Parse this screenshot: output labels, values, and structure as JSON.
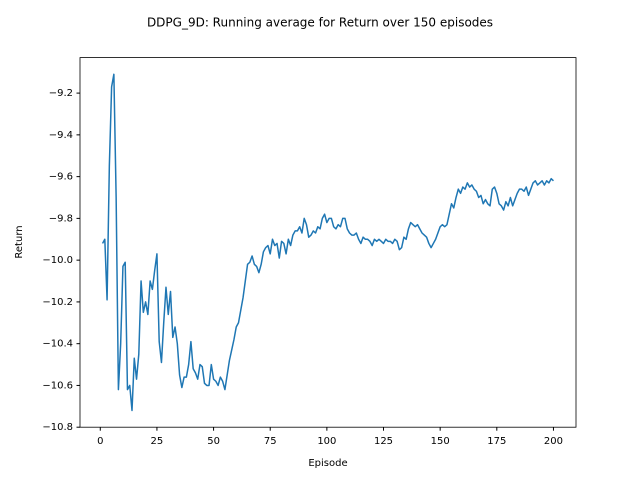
{
  "chart_data": {
    "type": "line",
    "title": "DDPG_9D: Running average for Return over 150 episodes",
    "xlabel": "Episode",
    "ylabel": "Return",
    "color": "#1f77b4",
    "grid": false,
    "xlim": [
      -8.95,
      209.95
    ],
    "ylim": [
      -10.8,
      -9.03
    ],
    "xticks": [
      0,
      25,
      50,
      75,
      100,
      125,
      150,
      175,
      200
    ],
    "yticks": [
      {
        "value": -10.8,
        "label": "−10.8"
      },
      {
        "value": -10.6,
        "label": "−10.6"
      },
      {
        "value": -10.4,
        "label": "−10.4"
      },
      {
        "value": -10.2,
        "label": "−10.2"
      },
      {
        "value": -10.0,
        "label": "−10.0"
      },
      {
        "value": -9.8,
        "label": "−9.8"
      },
      {
        "value": -9.6,
        "label": "−9.6"
      },
      {
        "value": -9.4,
        "label": "−9.4"
      },
      {
        "value": -9.2,
        "label": "−9.2"
      }
    ],
    "x": [
      1,
      2,
      3,
      4,
      5,
      6,
      7,
      8,
      9,
      10,
      11,
      12,
      13,
      14,
      15,
      16,
      17,
      18,
      19,
      20,
      21,
      22,
      23,
      24,
      25,
      26,
      27,
      28,
      29,
      30,
      31,
      32,
      33,
      34,
      35,
      36,
      37,
      38,
      39,
      40,
      41,
      42,
      43,
      44,
      45,
      46,
      47,
      48,
      49,
      50,
      51,
      52,
      53,
      54,
      55,
      56,
      57,
      58,
      59,
      60,
      61,
      62,
      63,
      64,
      65,
      66,
      67,
      68,
      69,
      70,
      71,
      72,
      73,
      74,
      75,
      76,
      77,
      78,
      79,
      80,
      81,
      82,
      83,
      84,
      85,
      86,
      87,
      88,
      89,
      90,
      91,
      92,
      93,
      94,
      95,
      96,
      97,
      98,
      99,
      100,
      101,
      102,
      103,
      104,
      105,
      106,
      107,
      108,
      109,
      110,
      111,
      112,
      113,
      114,
      115,
      116,
      117,
      118,
      119,
      120,
      121,
      122,
      123,
      124,
      125,
      126,
      127,
      128,
      129,
      130,
      131,
      132,
      133,
      134,
      135,
      136,
      137,
      138,
      139,
      140,
      141,
      142,
      143,
      144,
      145,
      146,
      147,
      148,
      149,
      150,
      151,
      152,
      153,
      154,
      155,
      156,
      157,
      158,
      159,
      160,
      161,
      162,
      163,
      164,
      165,
      166,
      167,
      168,
      169,
      170,
      171,
      172,
      173,
      174,
      175,
      176,
      177,
      178,
      179,
      180,
      181,
      182,
      183,
      184,
      185,
      186,
      187,
      188,
      189,
      190,
      191,
      192,
      193,
      194,
      195,
      196,
      197,
      198,
      199,
      200
    ],
    "values": [
      -9.92,
      -9.9,
      -10.19,
      -9.55,
      -9.17,
      -9.11,
      -9.7,
      -10.62,
      -10.4,
      -10.03,
      -10.01,
      -10.62,
      -10.6,
      -10.72,
      -10.47,
      -10.57,
      -10.45,
      -10.1,
      -10.25,
      -10.2,
      -10.26,
      -10.1,
      -10.14,
      -10.05,
      -9.97,
      -10.39,
      -10.49,
      -10.3,
      -10.13,
      -10.26,
      -10.15,
      -10.37,
      -10.32,
      -10.4,
      -10.55,
      -10.61,
      -10.56,
      -10.56,
      -10.5,
      -10.39,
      -10.52,
      -10.54,
      -10.57,
      -10.5,
      -10.51,
      -10.59,
      -10.6,
      -10.6,
      -10.5,
      -10.57,
      -10.58,
      -10.6,
      -10.56,
      -10.58,
      -10.62,
      -10.55,
      -10.48,
      -10.43,
      -10.38,
      -10.32,
      -10.3,
      -10.24,
      -10.18,
      -10.1,
      -10.02,
      -10.01,
      -9.98,
      -10.02,
      -10.03,
      -10.06,
      -10.02,
      -9.96,
      -9.94,
      -9.93,
      -9.97,
      -9.9,
      -9.93,
      -9.92,
      -9.99,
      -9.91,
      -9.92,
      -9.97,
      -9.9,
      -9.93,
      -9.88,
      -9.86,
      -9.86,
      -9.84,
      -9.87,
      -9.8,
      -9.83,
      -9.89,
      -9.88,
      -9.86,
      -9.87,
      -9.84,
      -9.85,
      -9.8,
      -9.78,
      -9.82,
      -9.8,
      -9.8,
      -9.84,
      -9.85,
      -9.83,
      -9.84,
      -9.8,
      -9.8,
      -9.85,
      -9.87,
      -9.88,
      -9.88,
      -9.87,
      -9.9,
      -9.92,
      -9.89,
      -9.9,
      -9.9,
      -9.91,
      -9.93,
      -9.9,
      -9.91,
      -9.9,
      -9.91,
      -9.92,
      -9.9,
      -9.91,
      -9.91,
      -9.92,
      -9.9,
      -9.91,
      -9.95,
      -9.94,
      -9.89,
      -9.9,
      -9.85,
      -9.82,
      -9.83,
      -9.84,
      -9.83,
      -9.85,
      -9.87,
      -9.88,
      -9.89,
      -9.92,
      -9.94,
      -9.92,
      -9.9,
      -9.87,
      -9.84,
      -9.83,
      -9.84,
      -9.83,
      -9.78,
      -9.73,
      -9.75,
      -9.7,
      -9.66,
      -9.68,
      -9.65,
      -9.66,
      -9.63,
      -9.65,
      -9.64,
      -9.66,
      -9.67,
      -9.7,
      -9.69,
      -9.73,
      -9.71,
      -9.73,
      -9.74,
      -9.66,
      -9.65,
      -9.68,
      -9.73,
      -9.74,
      -9.76,
      -9.72,
      -9.74,
      -9.7,
      -9.74,
      -9.71,
      -9.68,
      -9.66,
      -9.66,
      -9.67,
      -9.65,
      -9.69,
      -9.66,
      -9.63,
      -9.62,
      -9.64,
      -9.63,
      -9.62,
      -9.64,
      -9.62,
      -9.63,
      -9.61,
      -9.62
    ]
  }
}
